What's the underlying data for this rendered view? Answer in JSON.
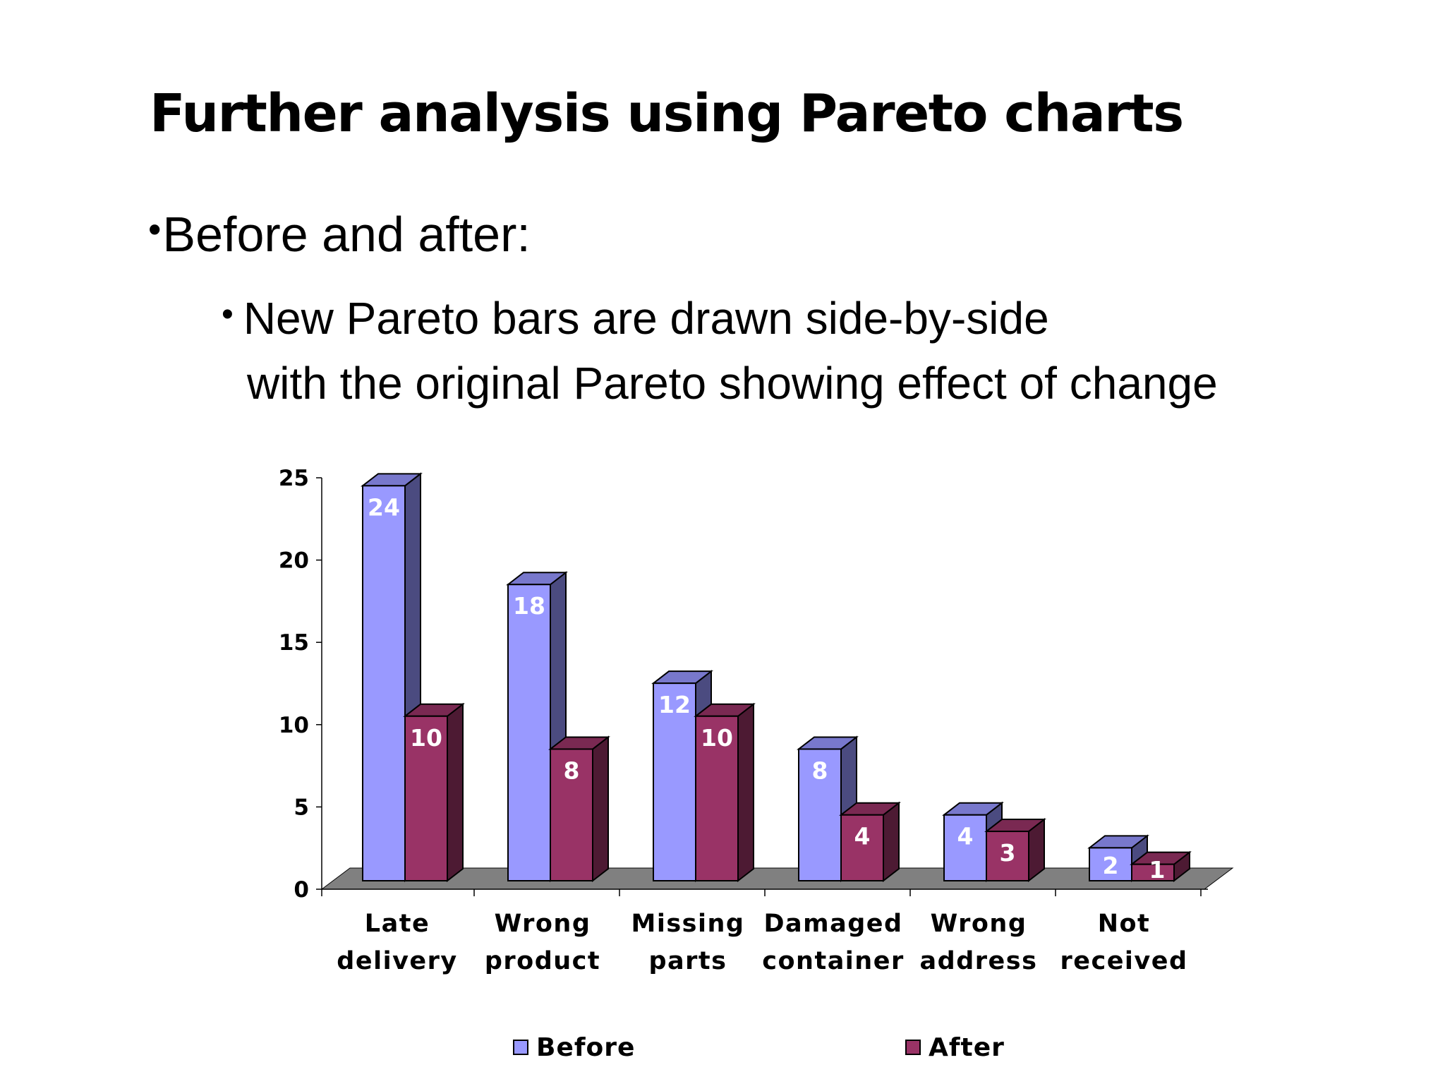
{
  "slide": {
    "title": "Further analysis using Pareto charts",
    "bullet1": "Before and after:",
    "bullet2_line1": "New Pareto bars are drawn side-by-side",
    "bullet2_line2": "with the original Pareto showing effect of change"
  },
  "chart_data": {
    "type": "bar",
    "style": "3d-clustered-column",
    "categories": [
      [
        "Late",
        "delivery"
      ],
      [
        "Wrong",
        "product"
      ],
      [
        "Missing",
        "parts"
      ],
      [
        "Damaged",
        "container"
      ],
      [
        "Wrong",
        "address"
      ],
      [
        "Not",
        "received"
      ]
    ],
    "series": [
      {
        "name": "Before",
        "values": [
          24,
          18,
          12,
          8,
          4,
          2
        ],
        "color": "#9999FF",
        "side_color": "#4B4B80",
        "top_color": "#7878CC"
      },
      {
        "name": "After",
        "values": [
          10,
          8,
          10,
          4,
          3,
          1
        ],
        "color": "#993366",
        "side_color": "#4D1A33",
        "top_color": "#7A2952"
      }
    ],
    "ylim": [
      0,
      25
    ],
    "yticks": [
      0,
      5,
      10,
      15,
      20,
      25
    ],
    "legend_position": "bottom",
    "data_labels": true,
    "floor_color": "#808080"
  }
}
